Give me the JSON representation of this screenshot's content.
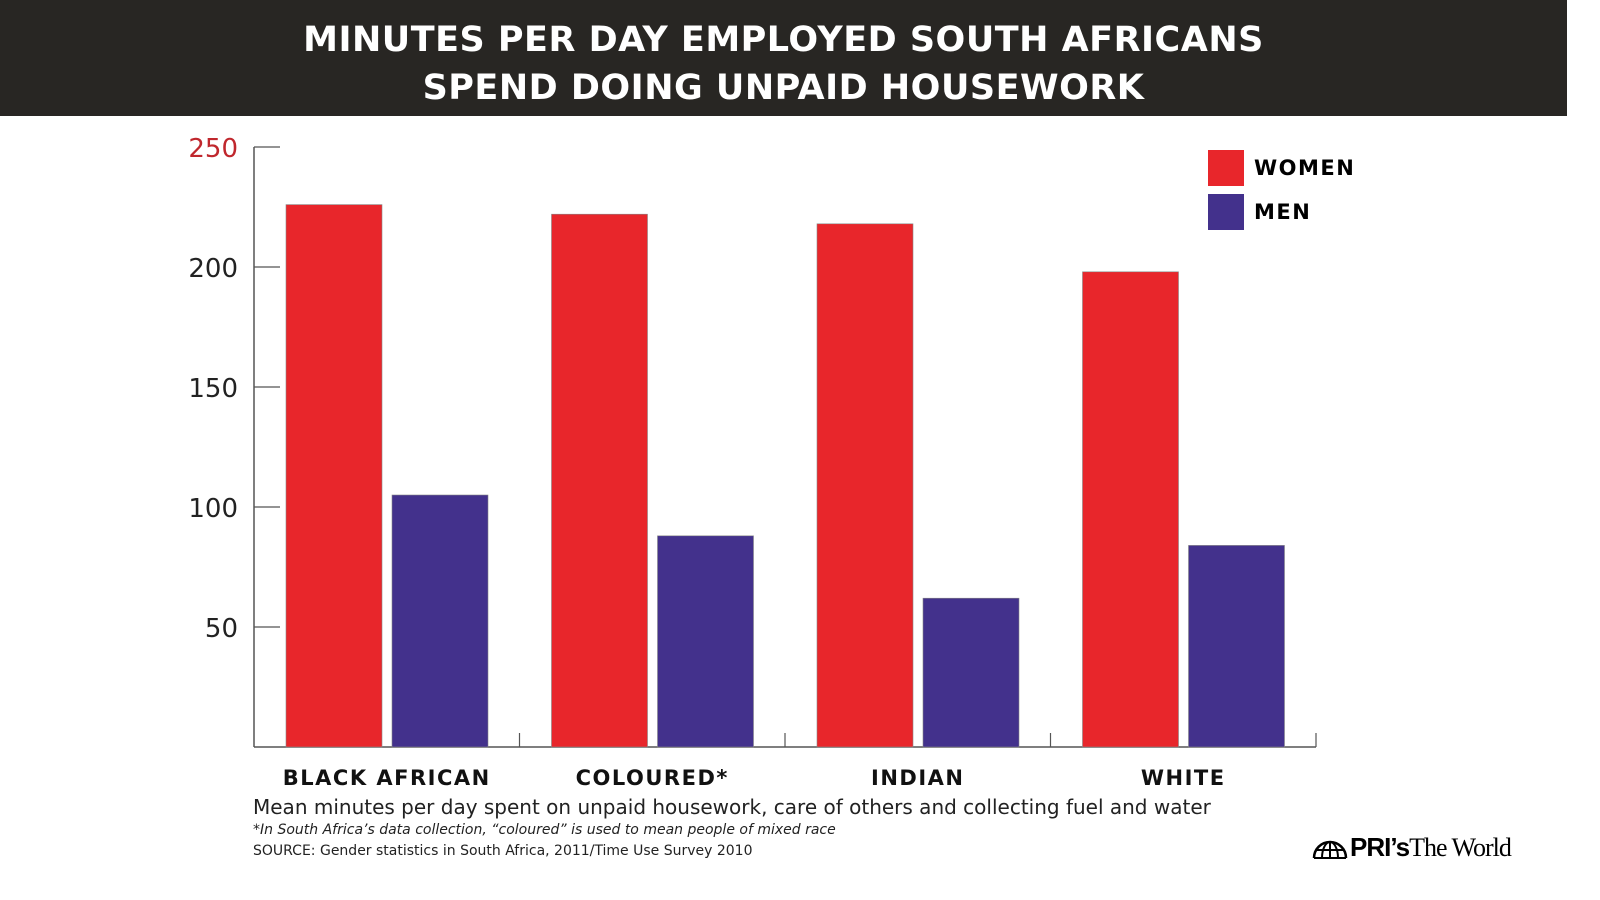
{
  "title_line1": "MINUTES PER DAY EMPLOYED SOUTH AFRICANS",
  "title_line2": "SPEND DOING UNPAID HOUSEWORK",
  "chart_data": {
    "type": "bar",
    "title": "MINUTES PER DAY EMPLOYED SOUTH AFRICANS SPEND DOING UNPAID HOUSEWORK",
    "categories": [
      "BLACK AFRICAN",
      "COLOURED*",
      "INDIAN",
      "WHITE"
    ],
    "series": [
      {
        "name": "WOMEN",
        "color": "#e8262b",
        "values": [
          226,
          222,
          218,
          198
        ]
      },
      {
        "name": "MEN",
        "color": "#43318c",
        "values": [
          105,
          88,
          62,
          84
        ]
      }
    ],
    "ylim": [
      0,
      250
    ],
    "yticks": [
      50,
      100,
      150,
      200,
      250
    ],
    "grid": false,
    "legend": "top-right",
    "xlabel": "Mean minutes per day spent on unpaid housework, care of others and collecting fuel and water"
  },
  "footnote": "*In South Africa’s data collection, “coloured” is used to mean people of mixed race",
  "source": "SOURCE: Gender statistics in South Africa, 2011/Time Use Survey 2010",
  "logo": {
    "bold": "PRI’s",
    "regular": "The World"
  }
}
